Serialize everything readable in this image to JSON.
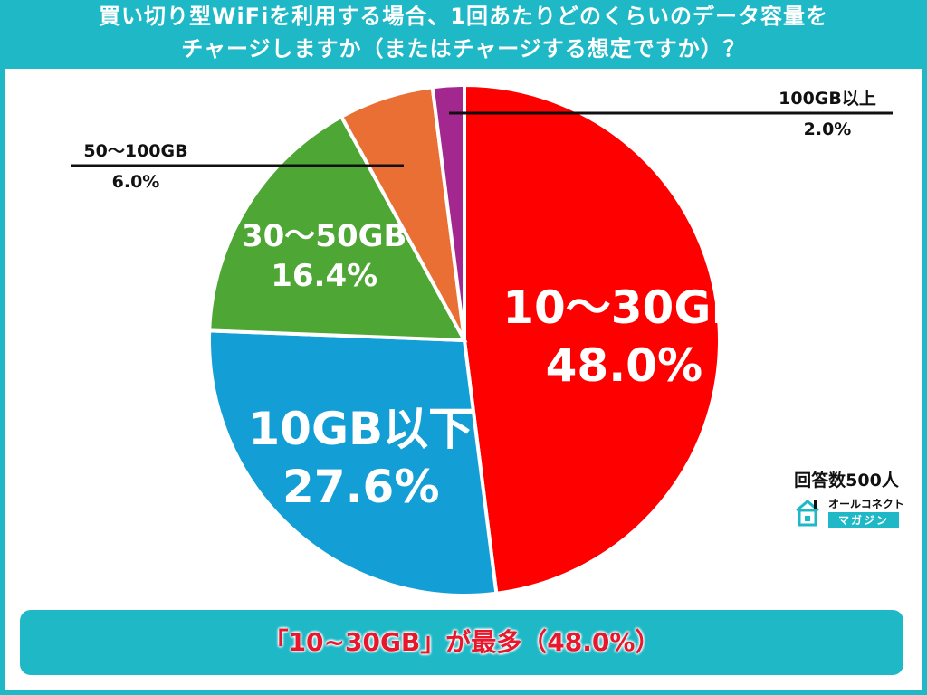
{
  "title": {
    "line1": "買い切り型WiFiを利用する場合、1回あたりどのくらいのデータ容量を",
    "line2": "チャージしますか（またはチャージする想定ですか）？"
  },
  "respondents": "回答数500人",
  "brand": {
    "top": "オールコネクト",
    "bottom": "マガジン"
  },
  "summary": "「10~30GB」が最多（48.0%）",
  "colors": {
    "background": "#1fb8c6",
    "slice_10_30": "#ff0000",
    "slice_under_10": "#139fd6",
    "slice_30_50": "#4ea634",
    "slice_50_100": "#e96f35",
    "slice_over_100": "#a2278f",
    "summary_text": "#e8172c"
  },
  "chart_data": {
    "type": "pie",
    "unit": "%",
    "start_angle_deg": 0,
    "direction": "clockwise",
    "slices": [
      {
        "label": "10〜30GB",
        "value": 48.0,
        "display": "48.0%",
        "color": "#ff0000",
        "label_style": "inside-large"
      },
      {
        "label": "10GB以下",
        "value": 27.6,
        "display": "27.6%",
        "color": "#139fd6",
        "label_style": "inside-large"
      },
      {
        "label": "30〜50GB",
        "value": 16.4,
        "display": "16.4%",
        "color": "#4ea634",
        "label_style": "inside-medium"
      },
      {
        "label": "50〜100GB",
        "value": 6.0,
        "display": "6.0%",
        "color": "#e96f35",
        "label_style": "leader-left"
      },
      {
        "label": "100GB以上",
        "value": 2.0,
        "display": "2.0%",
        "color": "#a2278f",
        "label_style": "leader-right"
      }
    ]
  }
}
